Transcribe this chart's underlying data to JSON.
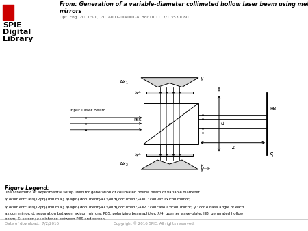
{
  "title_line1": "From: Generation of a variable-diameter collimated hollow laser beam using metal axicon",
  "title_line2": "mirrors",
  "subtitle": "Opt. Eng. 2011;50(1):014001-014001-4. doi:10.1117/1.3530080",
  "spie_text_line1": "SPIE",
  "spie_text_line2": "Digital",
  "spie_text_line3": "Library",
  "legend_title": "Figure Legend:",
  "legend_body": "The schematic of experimental setup used for generation of collimated hollow beam of variable diameter.\n\\documentclass[12pt]{minimal} \\begin{document}$AX_1$\\end{document}AX1 : convex axicon mirror;\n\\documentclass[12pt]{minimal} \\begin{document}$AX_2$\\end{document}AX2 : concave axicon mirror; γ : cone base angle of each\naxicon mirror; d: separation between axicon mirrors; PBS: polarizing beamsplitter; λ/4: quarter wave-plate; HB: generated hollow\nbeam; S: screen; z : distance between PBS and screen.",
  "footer_left": "Date of download:  7/2/2016",
  "footer_right": "Copyright © 2016 SPIE. All rights reserved.",
  "bg_color": "#ffffff",
  "red_color": "#cc0000",
  "gray_text": "#888888",
  "comp_fill": "#d8d8d8",
  "ax1_label": "AX$_1$",
  "ax2_label": "AX$_2$",
  "pbs_label": "PBS",
  "lam4_label": "λ/4",
  "hb_label": "HB",
  "screen_label": "S",
  "d_label": "d",
  "z_label": "z",
  "gamma": "γ",
  "input_beam_label": "Input Laser Beam"
}
